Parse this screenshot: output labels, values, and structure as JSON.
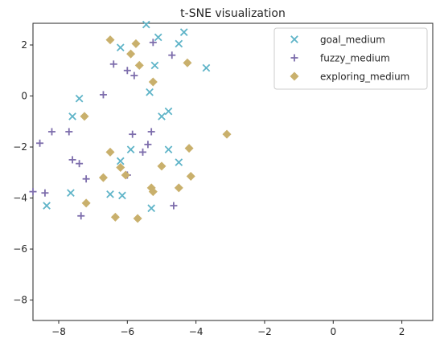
{
  "chart_data": {
    "type": "scatter",
    "title": "t-SNE visualization",
    "xlabel": "",
    "ylabel": "",
    "xlim": [
      -8.75,
      2.9
    ],
    "ylim": [
      -8.8,
      2.85
    ],
    "xticks": [
      -8,
      -6,
      -4,
      -2,
      0,
      2
    ],
    "yticks": [
      2,
      0,
      -2,
      -4,
      -6,
      -8
    ],
    "grid": false,
    "legend_position": "top-right",
    "series": [
      {
        "name": "goal_medium",
        "marker": "x",
        "color": "#5fb4c8",
        "points": [
          [
            -5.45,
            2.8
          ],
          [
            -5.1,
            2.3
          ],
          [
            -4.35,
            2.5
          ],
          [
            -4.5,
            2.05
          ],
          [
            -6.2,
            1.9
          ],
          [
            -5.2,
            1.2
          ],
          [
            -3.7,
            1.1
          ],
          [
            -5.35,
            0.15
          ],
          [
            -7.4,
            -0.1
          ],
          [
            -7.6,
            -0.8
          ],
          [
            -5.0,
            -0.8
          ],
          [
            -4.8,
            -0.6
          ],
          [
            -5.9,
            -2.1
          ],
          [
            -4.8,
            -2.1
          ],
          [
            -6.2,
            -2.55
          ],
          [
            -4.5,
            -2.6
          ],
          [
            -7.65,
            -3.8
          ],
          [
            -6.5,
            -3.85
          ],
          [
            -6.15,
            -3.9
          ],
          [
            -8.35,
            -4.3
          ],
          [
            -5.3,
            -4.4
          ]
        ]
      },
      {
        "name": "fuzzy_medium",
        "marker": "+",
        "color": "#7d6dac",
        "points": [
          [
            -6.4,
            1.25
          ],
          [
            -6.0,
            1.0
          ],
          [
            -5.8,
            0.8
          ],
          [
            -5.25,
            2.1
          ],
          [
            -4.7,
            1.6
          ],
          [
            -6.7,
            0.05
          ],
          [
            -8.2,
            -1.4
          ],
          [
            -7.7,
            -1.4
          ],
          [
            -8.55,
            -1.85
          ],
          [
            -5.85,
            -1.5
          ],
          [
            -5.3,
            -1.4
          ],
          [
            -5.4,
            -1.9
          ],
          [
            -5.55,
            -2.2
          ],
          [
            -7.6,
            -2.5
          ],
          [
            -7.4,
            -2.65
          ],
          [
            -7.2,
            -3.25
          ],
          [
            -6.0,
            -3.1
          ],
          [
            -8.75,
            -3.75
          ],
          [
            -8.4,
            -3.8
          ],
          [
            -7.35,
            -4.7
          ],
          [
            -4.65,
            -4.3
          ]
        ]
      },
      {
        "name": "exploring_medium",
        "marker": "D",
        "color": "#c9b06c",
        "points": [
          [
            -6.5,
            2.2
          ],
          [
            -5.75,
            2.05
          ],
          [
            -5.9,
            1.65
          ],
          [
            -5.65,
            1.2
          ],
          [
            -4.25,
            1.3
          ],
          [
            -5.25,
            0.55
          ],
          [
            -7.25,
            -0.8
          ],
          [
            -3.1,
            -1.5
          ],
          [
            -6.5,
            -2.2
          ],
          [
            -4.2,
            -2.05
          ],
          [
            -6.2,
            -2.8
          ],
          [
            -6.05,
            -3.1
          ],
          [
            -5.0,
            -2.75
          ],
          [
            -6.7,
            -3.2
          ],
          [
            -4.15,
            -3.15
          ],
          [
            -5.3,
            -3.6
          ],
          [
            -5.25,
            -3.75
          ],
          [
            -4.5,
            -3.6
          ],
          [
            -7.2,
            -4.2
          ],
          [
            -6.35,
            -4.75
          ],
          [
            -5.7,
            -4.8
          ]
        ]
      }
    ]
  }
}
